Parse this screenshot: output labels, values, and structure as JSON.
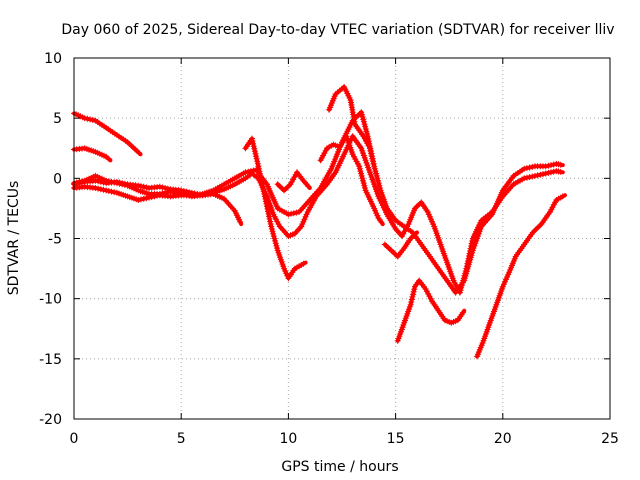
{
  "chart_data": {
    "type": "scatter",
    "title": "Day 060 of 2025, Sidereal Day-to-day VTEC variation (SDTVAR) for receiver lliv",
    "xlabel": "GPS time / hours",
    "ylabel": "SDTVAR / TECUs",
    "xlim": [
      0,
      25
    ],
    "ylim": [
      -20,
      10
    ],
    "x_ticks": [
      0,
      5,
      10,
      15,
      20,
      25
    ],
    "y_ticks": [
      -20,
      -15,
      -10,
      -5,
      0,
      5,
      10
    ],
    "x_tick_labels": [
      "0",
      "5",
      "10",
      "15",
      "20",
      "25"
    ],
    "y_tick_labels": [
      "-20",
      "-15",
      "-10",
      "-5",
      "0",
      "5",
      "10"
    ],
    "grid": true,
    "marker": "+",
    "color": "#ff0000",
    "series": [
      {
        "points": [
          [
            0.0,
            5.4
          ],
          [
            0.5,
            5.0
          ],
          [
            1.0,
            4.8
          ],
          [
            1.5,
            4.2
          ],
          [
            2.0,
            3.6
          ],
          [
            2.5,
            3.0
          ],
          [
            3.1,
            2.0
          ]
        ]
      },
      {
        "points": [
          [
            0.0,
            2.4
          ],
          [
            0.5,
            2.5
          ],
          [
            1.0,
            2.2
          ],
          [
            1.5,
            1.8
          ],
          [
            1.7,
            1.5
          ]
        ]
      },
      {
        "points": [
          [
            0.0,
            -0.5
          ],
          [
            0.5,
            -0.3
          ],
          [
            1.0,
            -0.2
          ],
          [
            1.5,
            -0.4
          ],
          [
            2.0,
            -0.3
          ],
          [
            2.5,
            -0.5
          ],
          [
            3.0,
            -0.6
          ],
          [
            3.5,
            -0.8
          ],
          [
            4.0,
            -0.7
          ],
          [
            4.5,
            -0.9
          ],
          [
            5.0,
            -1.0
          ],
          [
            5.5,
            -1.2
          ],
          [
            6.0,
            -1.4
          ],
          [
            6.5,
            -1.2
          ],
          [
            7.0,
            -0.9
          ],
          [
            7.5,
            -0.5
          ],
          [
            8.0,
            0.0
          ],
          [
            8.3,
            0.4
          ],
          [
            8.6,
            0.0
          ],
          [
            9.0,
            -1.5
          ],
          [
            9.3,
            -3.0
          ],
          [
            9.6,
            -4.0
          ],
          [
            10.0,
            -4.8
          ],
          [
            10.3,
            -4.6
          ],
          [
            10.6,
            -4.0
          ],
          [
            10.9,
            -2.8
          ],
          [
            11.3,
            -1.5
          ],
          [
            11.8,
            -0.5
          ],
          [
            12.2,
            0.5
          ],
          [
            12.6,
            2.0
          ],
          [
            13.0,
            3.5
          ],
          [
            13.4,
            2.5
          ],
          [
            13.8,
            0.5
          ],
          [
            14.2,
            -1.5
          ],
          [
            14.6,
            -3.0
          ],
          [
            15.0,
            -4.2
          ],
          [
            15.3,
            -4.8
          ],
          [
            15.6,
            -3.8
          ],
          [
            15.9,
            -2.5
          ],
          [
            16.2,
            -2.0
          ],
          [
            16.5,
            -2.8
          ],
          [
            16.8,
            -4.0
          ],
          [
            17.1,
            -5.5
          ],
          [
            17.4,
            -7.0
          ],
          [
            17.7,
            -8.5
          ],
          [
            18.0,
            -9.5
          ],
          [
            18.3,
            -7.5
          ],
          [
            18.6,
            -5.0
          ],
          [
            19.0,
            -3.5
          ],
          [
            19.5,
            -2.8
          ],
          [
            20.0,
            -1.5
          ],
          [
            20.5,
            -0.5
          ],
          [
            21.0,
            0.0
          ],
          [
            21.5,
            0.2
          ],
          [
            22.0,
            0.4
          ],
          [
            22.5,
            0.6
          ],
          [
            22.8,
            0.5
          ]
        ]
      },
      {
        "points": [
          [
            0.0,
            -0.8
          ],
          [
            0.5,
            -0.7
          ],
          [
            1.0,
            -0.8
          ],
          [
            1.5,
            -1.0
          ],
          [
            2.0,
            -1.2
          ],
          [
            2.5,
            -1.5
          ],
          [
            3.0,
            -1.8
          ],
          [
            3.5,
            -1.6
          ],
          [
            4.0,
            -1.4
          ],
          [
            4.5,
            -1.5
          ],
          [
            5.0,
            -1.4
          ],
          [
            5.5,
            -1.4
          ],
          [
            6.0,
            -1.3
          ],
          [
            6.5,
            -1.0
          ],
          [
            7.0,
            -0.5
          ],
          [
            7.5,
            0.0
          ],
          [
            8.0,
            0.5
          ],
          [
            8.5,
            0.7
          ],
          [
            9.0,
            -0.5
          ],
          [
            9.5,
            -2.5
          ],
          [
            10.0,
            -3.0
          ],
          [
            10.5,
            -2.8
          ],
          [
            11.0,
            -1.8
          ],
          [
            11.5,
            -0.8
          ],
          [
            12.0,
            0.8
          ],
          [
            12.5,
            3.0
          ],
          [
            13.0,
            4.8
          ],
          [
            13.4,
            5.5
          ],
          [
            13.7,
            3.5
          ],
          [
            14.0,
            1.0
          ],
          [
            14.3,
            -1.0
          ],
          [
            14.6,
            -2.5
          ],
          [
            15.0,
            -3.5
          ],
          [
            15.4,
            -4.0
          ],
          [
            15.8,
            -4.5
          ],
          [
            16.2,
            -5.5
          ],
          [
            16.6,
            -6.5
          ],
          [
            17.0,
            -7.5
          ],
          [
            17.4,
            -8.5
          ],
          [
            17.8,
            -9.5
          ],
          [
            18.2,
            -8.5
          ],
          [
            18.6,
            -6.0
          ],
          [
            19.0,
            -4.0
          ],
          [
            19.5,
            -3.0
          ],
          [
            20.0,
            -1.0
          ],
          [
            20.5,
            0.2
          ],
          [
            21.0,
            0.8
          ],
          [
            21.5,
            1.0
          ],
          [
            22.0,
            1.0
          ],
          [
            22.5,
            1.2
          ],
          [
            22.8,
            1.1
          ]
        ]
      },
      {
        "points": [
          [
            0.0,
            -0.4
          ],
          [
            0.5,
            -0.2
          ],
          [
            1.0,
            0.2
          ],
          [
            1.5,
            -0.2
          ],
          [
            2.0,
            -0.4
          ],
          [
            2.5,
            -0.6
          ],
          [
            3.0,
            -1.0
          ],
          [
            3.5,
            -1.3
          ],
          [
            4.0,
            -1.3
          ],
          [
            4.5,
            -1.1
          ],
          [
            5.0,
            -1.3
          ],
          [
            5.5,
            -1.5
          ],
          [
            6.0,
            -1.4
          ],
          [
            6.5,
            -1.3
          ],
          [
            7.0,
            -1.7
          ],
          [
            7.5,
            -2.7
          ],
          [
            7.8,
            -3.8
          ]
        ]
      },
      {
        "points": [
          [
            8.0,
            2.5
          ],
          [
            8.3,
            3.3
          ],
          [
            8.6,
            1.0
          ],
          [
            8.9,
            -1.5
          ],
          [
            9.2,
            -4.0
          ],
          [
            9.5,
            -6.0
          ],
          [
            9.8,
            -7.5
          ],
          [
            10.0,
            -8.3
          ],
          [
            10.3,
            -7.5
          ],
          [
            10.6,
            -7.2
          ],
          [
            10.8,
            -7.0
          ]
        ]
      },
      {
        "points": [
          [
            9.5,
            -0.5
          ],
          [
            9.8,
            -1.0
          ],
          [
            10.1,
            -0.5
          ],
          [
            10.4,
            0.5
          ],
          [
            10.7,
            -0.2
          ],
          [
            11.0,
            -0.8
          ]
        ]
      },
      {
        "points": [
          [
            11.5,
            1.5
          ],
          [
            11.8,
            2.5
          ],
          [
            12.1,
            2.8
          ],
          [
            12.4,
            2.6
          ],
          [
            12.7,
            3.5
          ],
          [
            13.0,
            2.0
          ],
          [
            13.3,
            1.0
          ],
          [
            13.6,
            -1.0
          ],
          [
            14.0,
            -2.5
          ],
          [
            14.2,
            -3.3
          ],
          [
            14.4,
            -3.8
          ]
        ]
      },
      {
        "points": [
          [
            11.9,
            5.7
          ],
          [
            12.2,
            7.0
          ],
          [
            12.6,
            7.6
          ],
          [
            12.9,
            6.5
          ],
          [
            13.1,
            4.5
          ],
          [
            13.5,
            3.5
          ],
          [
            13.8,
            2.5
          ],
          [
            14.0,
            1.0
          ]
        ]
      },
      {
        "points": [
          [
            14.5,
            -5.5
          ],
          [
            14.8,
            -6.0
          ],
          [
            15.1,
            -6.5
          ],
          [
            15.4,
            -5.8
          ],
          [
            15.7,
            -5.0
          ],
          [
            16.0,
            -4.5
          ]
        ]
      },
      {
        "points": [
          [
            15.1,
            -13.5
          ],
          [
            15.4,
            -12.0
          ],
          [
            15.7,
            -10.5
          ],
          [
            15.9,
            -9.0
          ],
          [
            16.1,
            -8.5
          ],
          [
            16.4,
            -9.2
          ],
          [
            16.7,
            -10.2
          ],
          [
            17.0,
            -11.0
          ],
          [
            17.3,
            -11.8
          ],
          [
            17.6,
            -12.0
          ],
          [
            17.9,
            -11.8
          ],
          [
            18.2,
            -11.0
          ]
        ]
      },
      {
        "points": [
          [
            18.8,
            -14.8
          ],
          [
            19.1,
            -13.5
          ],
          [
            19.4,
            -12.0
          ],
          [
            19.7,
            -10.5
          ],
          [
            20.0,
            -9.0
          ],
          [
            20.3,
            -7.8
          ],
          [
            20.6,
            -6.5
          ],
          [
            21.0,
            -5.5
          ],
          [
            21.4,
            -4.5
          ],
          [
            21.8,
            -3.8
          ],
          [
            22.2,
            -2.8
          ],
          [
            22.5,
            -1.8
          ],
          [
            22.9,
            -1.4
          ]
        ]
      }
    ]
  }
}
